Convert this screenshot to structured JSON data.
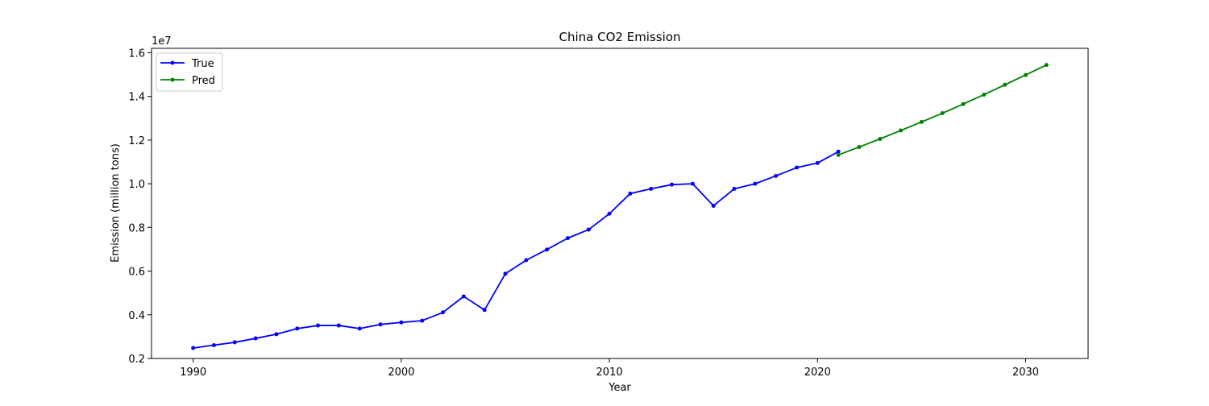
{
  "chart_data": {
    "type": "line",
    "title": "China CO2 Emission",
    "xlabel": "Year",
    "ylabel": "Emission (million tons)",
    "y_offset_label": "1e7",
    "xlim": [
      1988,
      2033
    ],
    "ylim": [
      2000000,
      16200000
    ],
    "x_ticks": [
      1990,
      2000,
      2010,
      2020,
      2030
    ],
    "x_tick_labels": [
      "1990",
      "2000",
      "2010",
      "2020",
      "2030"
    ],
    "y_ticks": [
      2000000,
      4000000,
      6000000,
      8000000,
      10000000,
      12000000,
      14000000,
      16000000
    ],
    "y_tick_labels": [
      "0.2",
      "0.4",
      "0.6",
      "0.8",
      "1.0",
      "1.2",
      "1.4",
      "1.6"
    ],
    "grid": false,
    "legend_position": "top-left",
    "series": [
      {
        "name": "True",
        "color": "#0000ff",
        "marker": "circle",
        "x": [
          1990,
          1991,
          1992,
          1993,
          1994,
          1995,
          1996,
          1997,
          1998,
          1999,
          2000,
          2001,
          2002,
          2003,
          2004,
          2005,
          2006,
          2007,
          2008,
          2009,
          2010,
          2011,
          2012,
          2013,
          2014,
          2015,
          2016,
          2017,
          2018,
          2019,
          2020,
          2021
        ],
        "y": [
          2480000,
          2610000,
          2740000,
          2920000,
          3110000,
          3370000,
          3510000,
          3510000,
          3370000,
          3560000,
          3650000,
          3730000,
          4110000,
          4840000,
          4220000,
          5880000,
          6500000,
          6990000,
          7510000,
          7900000,
          8630000,
          9550000,
          9770000,
          9960000,
          10000000,
          8990000,
          9770000,
          10000000,
          10360000,
          10740000,
          10950000,
          11470000
        ]
      },
      {
        "name": "Pred",
        "color": "#008000",
        "marker": "circle",
        "x": [
          2021,
          2022,
          2023,
          2024,
          2025,
          2026,
          2027,
          2028,
          2029,
          2030,
          2031
        ],
        "y": [
          11320000,
          11680000,
          12050000,
          12440000,
          12830000,
          13230000,
          13650000,
          14080000,
          14530000,
          14980000,
          15440000
        ]
      }
    ]
  }
}
